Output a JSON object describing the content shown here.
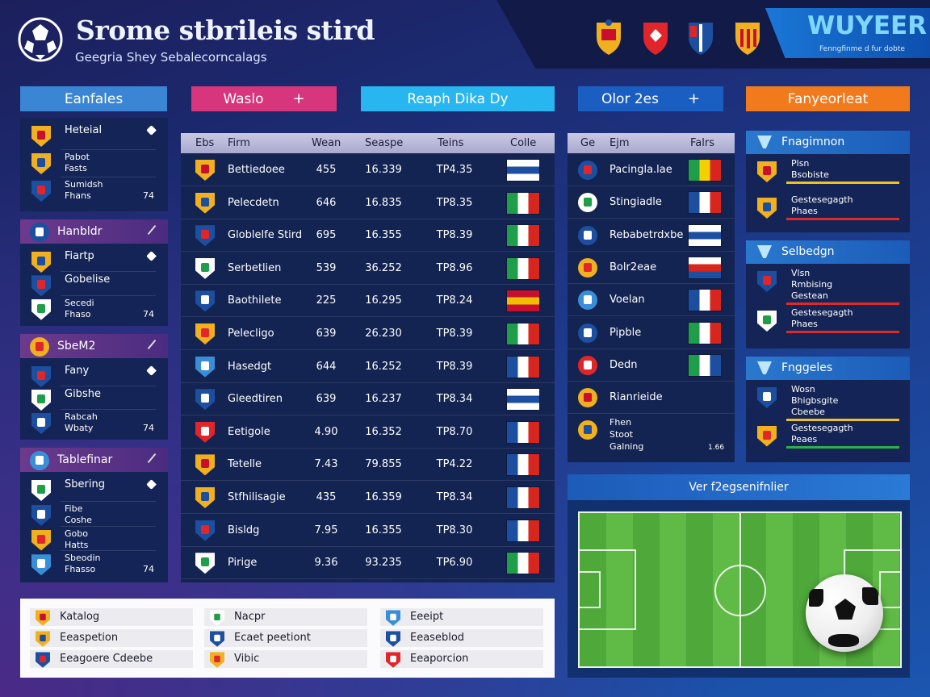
{
  "header": {
    "title": "Srome stbrileis stird",
    "subtitle": "Geegria Shey Sebalecorncalags",
    "brand": "WUYEER",
    "brand_tagline": "Fenngfinme d fur dobte"
  },
  "tabs": [
    {
      "label": "Eanfales",
      "color": "#3b86d4"
    },
    {
      "label": "Waslo",
      "suffix": "+",
      "color": "#d8367c"
    },
    {
      "label": "Reaph Dika Dy",
      "color": "#27b6ef"
    },
    {
      "label": "Olor 2es",
      "suffix": "+",
      "color": "#1b5ec2"
    },
    {
      "label": "Fanyeorleat",
      "color": "#f07a1c"
    }
  ],
  "left_panels": [
    {
      "items": [
        {
          "lines": [
            "Heteial"
          ]
        },
        {
          "lines": [
            "Pabot",
            "Fasts"
          ]
        },
        {
          "lines": [
            "Sumidsh",
            "Fhans"
          ],
          "num": 74
        }
      ]
    },
    {
      "title": "Hanbldr",
      "items": [
        {
          "lines": [
            "Fiartp"
          ]
        },
        {
          "lines": [
            "Gobelise"
          ]
        },
        {
          "lines": [
            "Secedi",
            "Fhaso"
          ],
          "num": 74
        }
      ]
    },
    {
      "title": "SbeM2",
      "items": [
        {
          "lines": [
            "Fany"
          ]
        },
        {
          "lines": [
            "Gibshe"
          ]
        },
        {
          "lines": [
            "Rabcah",
            "Wbaty"
          ],
          "num": 74
        }
      ]
    },
    {
      "title": "Tablefinar",
      "items": [
        {
          "lines": [
            "Sbering"
          ]
        },
        {
          "lines": [
            "Fibe",
            "Coshe"
          ]
        },
        {
          "lines": [
            "Gobo",
            "Hatts"
          ]
        },
        {
          "lines": [
            "Sbeodin",
            "Fhasso"
          ],
          "num": 74
        }
      ]
    }
  ],
  "main_table": {
    "columns": [
      "Ebs",
      "Firm",
      "Wean",
      "Seaspe",
      "Teins",
      "Colle"
    ],
    "rows": [
      [
        "Bettiedoee",
        "455",
        "16.339",
        "TP4.35"
      ],
      [
        "Pelecdetn",
        "646",
        "16.835",
        "TP8.35"
      ],
      [
        "Globlelfe Stird",
        "695",
        "16.355",
        "TP8.39"
      ],
      [
        "Serbetlien",
        "539",
        "36.252",
        "TP8.96"
      ],
      [
        "Baothilete",
        "225",
        "16.295",
        "TP8.24"
      ],
      [
        "Pelecligo",
        "639",
        "26.230",
        "TP8.39"
      ],
      [
        "Hasedgt",
        "644",
        "16.252",
        "TP8.39"
      ],
      [
        "Gleedtiren",
        "639",
        "16.237",
        "TP8.34"
      ],
      [
        "Eetigole",
        "4.90",
        "16.352",
        "TP8.70"
      ],
      [
        "Tetelle",
        "7.43",
        "79.855",
        "TP4.22"
      ],
      [
        "Stfhilisagie",
        "435",
        "16.359",
        "TP8.34"
      ],
      [
        "Bisldg",
        "7.95",
        "16.355",
        "TP8.30"
      ],
      [
        "Pirige",
        "9.36",
        "93.235",
        "TP6.90"
      ]
    ],
    "flags": [
      {
        "h": [
          "#ffffff",
          "#1d4fa0",
          "#ffffff"
        ]
      },
      {
        "v": [
          "#1e9e48",
          "#ffffff",
          "#d7261e"
        ]
      },
      {
        "v": [
          "#1e9e48",
          "#ffffff",
          "#d7261e"
        ]
      },
      {
        "v": [
          "#1e9e48",
          "#ffffff",
          "#d7261e"
        ]
      },
      {
        "h": [
          "#c8102e",
          "#f1bf00",
          "#c8102e"
        ]
      },
      {
        "v": [
          "#1e9e48",
          "#ffffff",
          "#d7261e"
        ]
      },
      {
        "v": [
          "#1d4fa0",
          "#ffffff",
          "#d7261e"
        ]
      },
      {
        "h": [
          "#ffffff",
          "#1d4fa0",
          "#ffffff"
        ]
      },
      {
        "v": [
          "#1d4fa0",
          "#ffffff",
          "#d7261e"
        ]
      },
      {
        "v": [
          "#1d4fa0",
          "#ffffff",
          "#d7261e"
        ]
      },
      {
        "v": [
          "#1d4fa0",
          "#ffffff",
          "#d7261e"
        ]
      },
      {
        "v": [
          "#1d4fa0",
          "#ffffff",
          "#d7261e"
        ]
      },
      {
        "v": [
          "#1e9e48",
          "#ffffff",
          "#d7261e"
        ]
      }
    ]
  },
  "side_table": {
    "columns": [
      "Ge",
      "Ejm",
      "Falrs"
    ],
    "rows": [
      {
        "name": "Pacingla.lae",
        "flag": {
          "v": [
            "#1e9e48",
            "#f5d000",
            "#d7261e"
          ]
        }
      },
      {
        "name": "Stingiadle",
        "flag": {
          "v": [
            "#1d4fa0",
            "#ffffff",
            "#d7261e"
          ]
        }
      },
      {
        "name": "Rebabetrdxbe",
        "flag": {
          "h": [
            "#ffffff",
            "#1d4fa0",
            "#ffffff"
          ]
        }
      },
      {
        "name": "Bolr2eae",
        "flag": {
          "h": [
            "#ffffff",
            "#d7261e",
            "#1d4fa0"
          ]
        }
      },
      {
        "name": "Voelan",
        "flag": {
          "v": [
            "#1d4fa0",
            "#ffffff",
            "#d7261e"
          ]
        }
      },
      {
        "name": "Pipble",
        "flag": {
          "v": [
            "#1e9e48",
            "#ffffff",
            "#d7261e"
          ]
        }
      },
      {
        "name": "Dedn",
        "flag": {
          "v": [
            "#1e9e48",
            "#ffffff",
            "#1d4fa0"
          ]
        }
      },
      {
        "name": "Rianrieide"
      },
      {
        "lines": [
          "Fhen",
          "Stoot",
          "Galning"
        ],
        "note": "1.66"
      }
    ]
  },
  "right_panels": [
    {
      "title": "Fnagimnon",
      "items": [
        {
          "lines": [
            "Plsn",
            "Bsobiste"
          ],
          "bar": "#f2c21b"
        },
        {
          "lines": [
            "Gestesegagth",
            "Phaes"
          ],
          "bar": "#e02a2a"
        }
      ]
    },
    {
      "title": "Selbedgn",
      "items": [
        {
          "lines": [
            "Vlsn",
            "Rmbising",
            "Gestean"
          ],
          "bar": "#e02a2a"
        },
        {
          "lines": [
            "Gestesegagth",
            "Phaes"
          ],
          "bar": "#e02a2a"
        }
      ]
    },
    {
      "title": "Fnggeles",
      "items": [
        {
          "lines": [
            "Wosn",
            "Bhigbsgite",
            "Cbeebe"
          ],
          "bar": "#f2c21b"
        },
        {
          "lines": [
            "Gestesegagth",
            "Peaes"
          ],
          "bar": "#2fae4a"
        }
      ]
    }
  ],
  "pitch": {
    "title": "Ver f2egsenifnlier"
  },
  "legend": [
    [
      "Katalog",
      "Eeaspetion",
      "Eeagoere Cdeebe"
    ],
    [
      "Nacpr",
      "Ecaet peetiont",
      "Vibic"
    ],
    [
      "Eeeipt",
      "Eeaseblod",
      "Eeaporcion"
    ]
  ]
}
